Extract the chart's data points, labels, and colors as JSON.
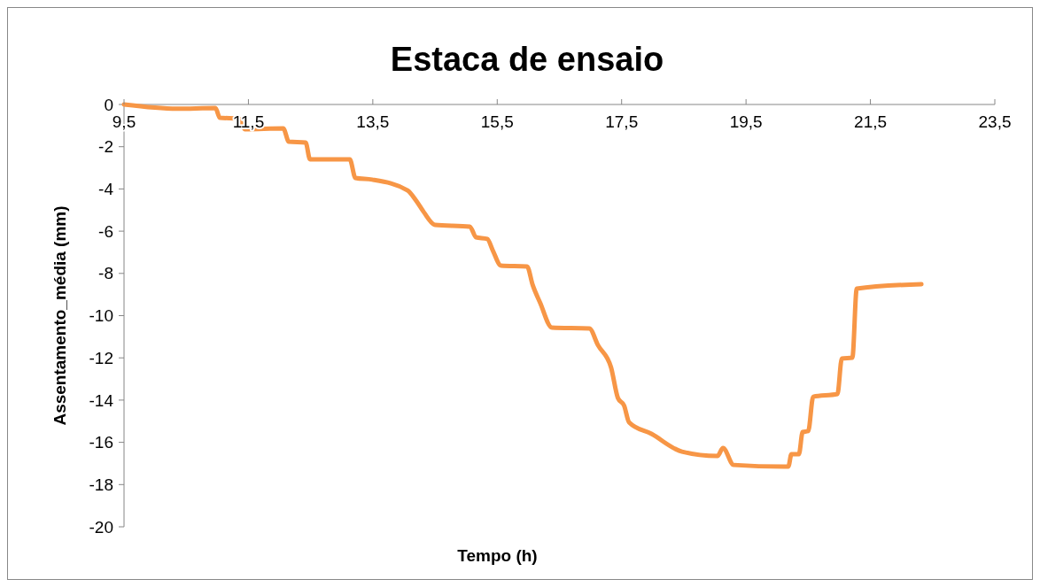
{
  "chart_data": {
    "type": "line",
    "title": "Estaca de ensaio",
    "xlabel": "Tempo (h)",
    "ylabel": "Assentamento_média (mm)",
    "xlim": [
      9.5,
      23.5
    ],
    "xticks": [
      {
        "value": 9.5,
        "label": "9,5"
      },
      {
        "value": 11.5,
        "label": "11,5"
      },
      {
        "value": 13.5,
        "label": "13,5"
      },
      {
        "value": 15.5,
        "label": "15,5"
      },
      {
        "value": 17.5,
        "label": "17,5"
      },
      {
        "value": 19.5,
        "label": "19,5"
      },
      {
        "value": 21.5,
        "label": "21,5"
      },
      {
        "value": 23.5,
        "label": "23,5"
      }
    ],
    "ylim": [
      -20,
      0
    ],
    "yticks": [
      -20,
      -18,
      -16,
      -14,
      -12,
      -10,
      -8,
      -6,
      -4,
      -2,
      0
    ],
    "grid": false,
    "marker": "none",
    "line_style": "solid",
    "series": [
      {
        "color": "#f79646",
        "x": [
          9.5,
          10.35,
          10.97,
          11.04,
          11.35,
          11.44,
          12.06,
          12.15,
          12.42,
          12.49,
          13.13,
          13.22,
          13.49,
          14.06,
          14.2,
          14.32,
          14.5,
          15.06,
          15.16,
          15.34,
          15.43,
          15.56,
          15.98,
          16.07,
          16.19,
          16.38,
          16.98,
          17.12,
          17.33,
          17.44,
          17.54,
          17.62,
          17.98,
          18.47,
          19.04,
          19.13,
          19.3,
          20.11,
          20.18,
          20.23,
          20.35,
          20.41,
          20.5,
          20.58,
          20.97,
          21.04,
          21.21,
          21.28,
          22.32
        ],
        "values": [
          0,
          -0.2,
          -0.17,
          -0.63,
          -0.67,
          -1.17,
          -1.13,
          -1.76,
          -1.8,
          -2.6,
          -2.6,
          -3.48,
          -3.56,
          -4.07,
          -4.57,
          -5.1,
          -5.7,
          -5.79,
          -6.29,
          -6.37,
          -6.92,
          -7.63,
          -7.67,
          -8.55,
          -9.39,
          -10.57,
          -10.61,
          -11.4,
          -12.45,
          -13.9,
          -14.26,
          -15.05,
          -15.6,
          -16.44,
          -16.65,
          -16.27,
          -17.07,
          -17.15,
          -17.15,
          -16.56,
          -16.56,
          -15.51,
          -15.47,
          -13.84,
          -13.71,
          -12.03,
          -11.99,
          -8.72,
          -8.51
        ]
      }
    ]
  }
}
